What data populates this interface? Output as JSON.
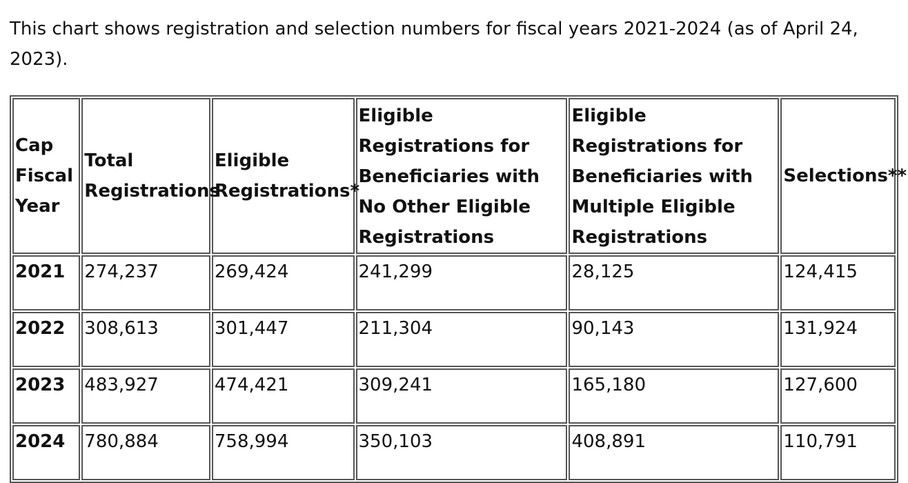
{
  "intro_text": "This chart shows registration and selection numbers for fiscal years 2021-2024 (as of April 24, 2023).",
  "table": {
    "headers": [
      "Cap Fiscal Year",
      "Total Registrations",
      "Eligible Registrations*",
      "Eligible Registrations for Beneficiaries with No Other Eligible Registrations",
      "Eligible Registrations for Beneficiaries with Multiple Eligible Registrations",
      "Selections**"
    ],
    "rows": [
      [
        "2021",
        "274,237",
        "269,424",
        "241,299",
        "28,125",
        "124,415"
      ],
      [
        "2022",
        "308,613",
        "301,447",
        "211,304",
        "90,143",
        "131,924"
      ],
      [
        "2023",
        "483,927",
        "474,421",
        "309,241",
        "165,180",
        "127,600"
      ],
      [
        "2024",
        "780,884",
        "758,994",
        "350,103",
        "408,891",
        "110,791"
      ]
    ]
  }
}
